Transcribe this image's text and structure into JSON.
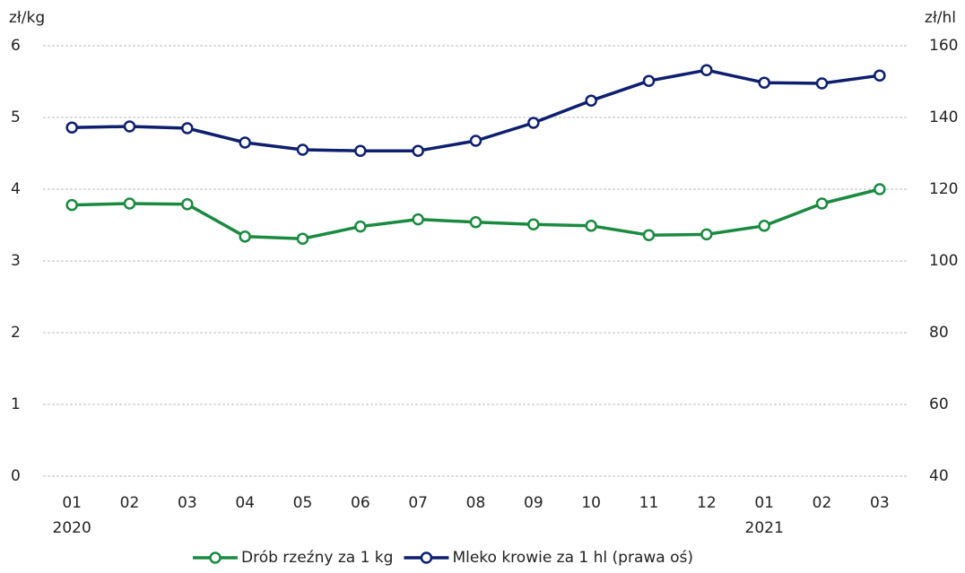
{
  "chart_data": {
    "type": "line",
    "y_unit_label": "zł/kg",
    "y2_unit_label": "zł/hl",
    "categories": [
      [
        "01",
        "2020"
      ],
      [
        "02"
      ],
      [
        "03"
      ],
      [
        "04"
      ],
      [
        "05"
      ],
      [
        "06"
      ],
      [
        "07"
      ],
      [
        "08"
      ],
      [
        "09"
      ],
      [
        "10"
      ],
      [
        "11"
      ],
      [
        "12"
      ],
      [
        "01",
        "2021"
      ],
      [
        "02"
      ],
      [
        "03"
      ]
    ],
    "series": [
      {
        "name": "Drób rzeźny za 1 kg",
        "color": "#1a8a40",
        "values": [
          3.78,
          3.8,
          3.79,
          3.34,
          3.31,
          3.48,
          3.58,
          3.54,
          3.51,
          3.49,
          3.36,
          3.37,
          3.49,
          3.8,
          4.0
        ]
      },
      {
        "name": "Mleko krowie za 1 hl (prawa oś)",
        "color": "#0d1f6e",
        "axis": "y2",
        "values": [
          137.2,
          137.5,
          137.0,
          133.0,
          131.0,
          130.7,
          130.7,
          133.5,
          138.5,
          144.7,
          150.2,
          153.2,
          149.7,
          149.5,
          151.7
        ]
      }
    ],
    "ylim": [
      0,
      6
    ],
    "yticks": [
      0,
      1,
      2,
      3,
      4,
      5,
      6
    ],
    "y2lim": [
      40,
      160
    ],
    "y2ticks": [
      40,
      60,
      80,
      100,
      120,
      140,
      160
    ],
    "grid": true,
    "legend": "bottom"
  }
}
